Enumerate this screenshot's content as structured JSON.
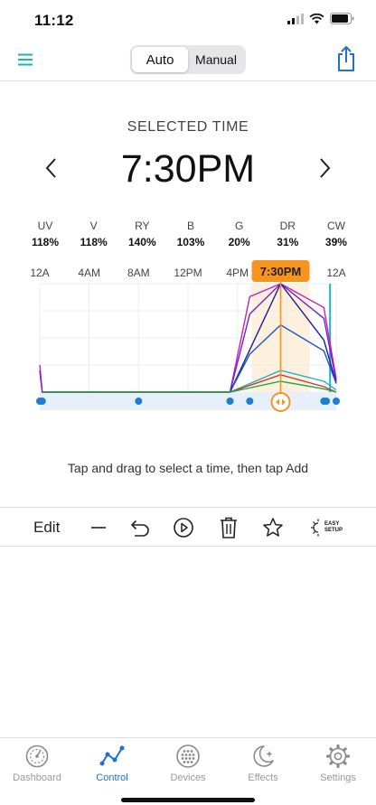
{
  "status": {
    "time": "11:12"
  },
  "header": {
    "modes": [
      {
        "label": "Auto",
        "active": true
      },
      {
        "label": "Manual",
        "active": false
      }
    ],
    "accent_color": "#19b3b8",
    "share_color": "#1e6fd9"
  },
  "selected": {
    "label": "SELECTED TIME",
    "time": "7:30PM"
  },
  "channels": [
    {
      "name": "UV",
      "value": "118%"
    },
    {
      "name": "V",
      "value": "118%"
    },
    {
      "name": "RY",
      "value": "140%"
    },
    {
      "name": "B",
      "value": "103%"
    },
    {
      "name": "G",
      "value": "20%"
    },
    {
      "name": "DR",
      "value": "31%"
    },
    {
      "name": "CW",
      "value": "39%"
    }
  ],
  "chart_data": {
    "type": "line",
    "x_ticks": [
      "12A",
      "4AM",
      "8AM",
      "12PM",
      "4PM",
      "7:30PM",
      "12A"
    ],
    "x_range_hours": [
      0,
      24
    ],
    "selected_hour": 19.5,
    "selected_label": "7:30PM",
    "grid": true,
    "now_hour": 23.5,
    "keyframe_hours": [
      0,
      0.2,
      8,
      15.4,
      17,
      19.5,
      23,
      23.2,
      24
    ],
    "series": [
      {
        "color": "#c21fc7",
        "points": [
          [
            0,
            0.25
          ],
          [
            0.2,
            0
          ],
          [
            15.4,
            0
          ],
          [
            17,
            0.88
          ],
          [
            19.5,
            1.0
          ],
          [
            23,
            0.78
          ],
          [
            24,
            0.12
          ]
        ]
      },
      {
        "color": "#7a1fc7",
        "points": [
          [
            0,
            0.2
          ],
          [
            0.2,
            0
          ],
          [
            15.4,
            0
          ],
          [
            17,
            0.72
          ],
          [
            19.5,
            1.0
          ],
          [
            23,
            0.68
          ],
          [
            24,
            0.1
          ]
        ]
      },
      {
        "color": "#1c1c9c",
        "points": [
          [
            0.2,
            0
          ],
          [
            15.4,
            0
          ],
          [
            19.5,
            1.0
          ],
          [
            23,
            0.48
          ],
          [
            24,
            0.08
          ]
        ]
      },
      {
        "color": "#1f55c7",
        "points": [
          [
            0.2,
            0
          ],
          [
            15.4,
            0
          ],
          [
            17,
            0.35
          ],
          [
            19.5,
            0.62
          ],
          [
            23,
            0.38
          ],
          [
            24,
            0.08
          ]
        ]
      },
      {
        "color": "#1fb0c7",
        "points": [
          [
            0.2,
            0
          ],
          [
            15.4,
            0
          ],
          [
            19.5,
            0.2
          ],
          [
            23,
            0.1
          ],
          [
            24,
            0.02
          ]
        ]
      },
      {
        "color": "#d4342a",
        "points": [
          [
            0.2,
            0
          ],
          [
            15.4,
            0
          ],
          [
            19.5,
            0.16
          ],
          [
            23,
            0.05
          ],
          [
            24,
            0
          ]
        ]
      },
      {
        "color": "#22a93d",
        "points": [
          [
            0.2,
            0
          ],
          [
            15.4,
            0
          ],
          [
            19.5,
            0.1
          ],
          [
            23,
            0.03
          ],
          [
            24,
            0
          ]
        ]
      }
    ],
    "colors": {
      "selected": "#f7941d",
      "keyframe": "#1e7fd1",
      "now": "#1fb6c4"
    }
  },
  "hint": "Tap and drag to select a time, then tap Add",
  "toolbar": {
    "edit": "Edit",
    "easy_setup_line1": "EASY",
    "easy_setup_line2": "SETUP"
  },
  "tabs": [
    {
      "label": "Dashboard",
      "icon": "dashboard-icon",
      "active": false
    },
    {
      "label": "Control",
      "icon": "control-icon",
      "active": true
    },
    {
      "label": "Devices",
      "icon": "devices-icon",
      "active": false
    },
    {
      "label": "Effects",
      "icon": "effects-icon",
      "active": false
    },
    {
      "label": "Settings",
      "icon": "settings-icon",
      "active": false
    }
  ]
}
